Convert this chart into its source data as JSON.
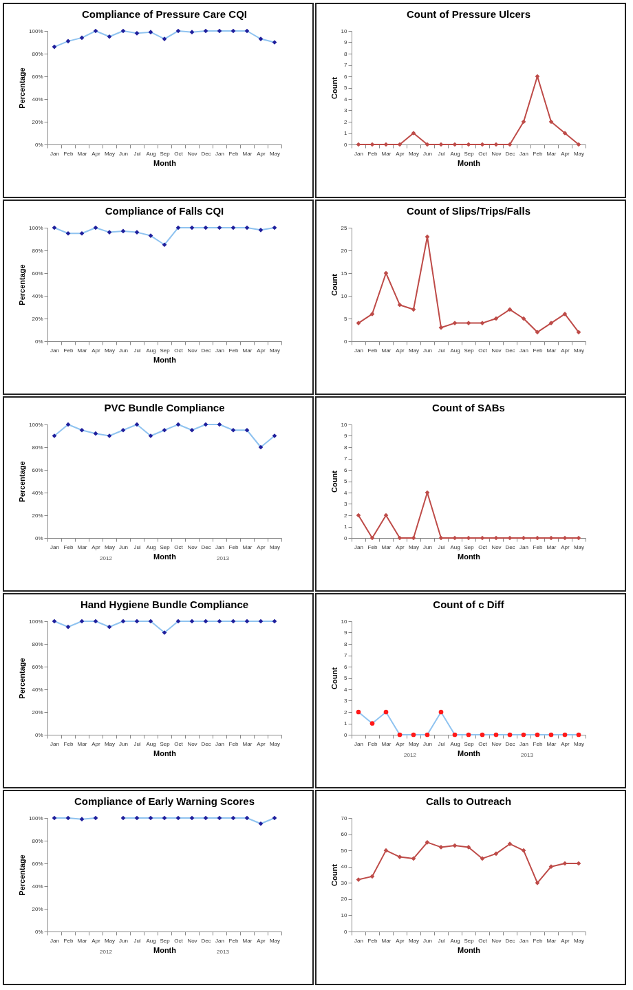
{
  "chart_data": [
    {
      "type": "line",
      "title": "Compliance of Pressure Care CQI",
      "xlabel": "Month",
      "ylabel": "Percentage",
      "marker": "diamond",
      "categories": [
        "Jan",
        "Feb",
        "Mar",
        "Apr",
        "May",
        "Jun",
        "Jul",
        "Aug",
        "Sep",
        "Oct",
        "Nov",
        "Dec",
        "Jan",
        "Feb",
        "Mar",
        "Apr",
        "May"
      ],
      "ylim": [
        0,
        100
      ],
      "yticks": [
        {
          "value": 0,
          "label": "0%"
        },
        {
          "value": 20,
          "label": "20%"
        },
        {
          "value": 40,
          "label": "40%"
        },
        {
          "value": 60,
          "label": "60%"
        },
        {
          "value": 80,
          "label": "80%"
        },
        {
          "value": 100,
          "label": "100%"
        }
      ],
      "series": [
        {
          "color": "#8fc3f0",
          "colors": [
            "#1f1f9c",
            "#1f1f9c",
            "#1f1f9c",
            "#1f1f9c",
            "#1f1f9c",
            "#1f1f9c",
            "#1f1f9c",
            "#1f1f9c",
            "#1f1f9c",
            "#1f1f9c",
            "#1f1f9c",
            "#1f1f9c",
            "#1f1f9c",
            "#1f1f9c",
            "#1f1f9c",
            "#1f1f9c",
            "#1f1f9c"
          ],
          "values": [
            86,
            91,
            94,
            100,
            95,
            100,
            98,
            99,
            93,
            100,
            99,
            100,
            100,
            100,
            100,
            93,
            90
          ]
        }
      ]
    },
    {
      "type": "line",
      "title": "Count  of Pressure Ulcers",
      "xlabel": "Month",
      "ylabel": "Count",
      "marker": "diamond",
      "categories": [
        "Jan",
        "Feb",
        "Mar",
        "Apr",
        "May",
        "Jun",
        "Jul",
        "Aug",
        "Sep",
        "Oct",
        "Nov",
        "Dec",
        "Jan",
        "Feb",
        "Mar",
        "Apr",
        "May"
      ],
      "ylim": [
        0,
        10
      ],
      "yticks": [
        0,
        1,
        2,
        3,
        4,
        5,
        6,
        7,
        8,
        9,
        10
      ],
      "series": [
        {
          "color": "#be4b48",
          "values": [
            0,
            0,
            0,
            0,
            1,
            0,
            0,
            0,
            0,
            0,
            0,
            0,
            2,
            6,
            2,
            1,
            0
          ]
        }
      ]
    },
    {
      "type": "line",
      "title": "Compliance of Falls CQI",
      "xlabel": "Month",
      "ylabel": "Percentage",
      "marker": "diamond",
      "categories": [
        "Jan",
        "Feb",
        "Mar",
        "Apr",
        "May",
        "Jun",
        "Jul",
        "Aug",
        "Sep",
        "Oct",
        "Nov",
        "Dec",
        "Jan",
        "Feb",
        "Mar",
        "Apr",
        "May"
      ],
      "ylim": [
        0,
        100
      ],
      "yticks": [
        {
          "value": 0,
          "label": "0%"
        },
        {
          "value": 20,
          "label": "20%"
        },
        {
          "value": 40,
          "label": "40%"
        },
        {
          "value": 60,
          "label": "60%"
        },
        {
          "value": 80,
          "label": "80%"
        },
        {
          "value": 100,
          "label": "100%"
        }
      ],
      "series": [
        {
          "color": "#8fc3f0",
          "colors": [
            "#1f1f9c",
            "#1f1f9c",
            "#1f1f9c",
            "#1f1f9c",
            "#1f1f9c",
            "#1f1f9c",
            "#1f1f9c",
            "#1f1f9c",
            "#1f1f9c",
            "#1f1f9c",
            "#1f1f9c",
            "#1f1f9c",
            "#1f1f9c",
            "#1f1f9c",
            "#1f1f9c",
            "#1f1f9c",
            "#1f1f9c"
          ],
          "values": [
            100,
            95,
            95,
            100,
            96,
            97,
            96,
            93,
            85,
            100,
            100,
            100,
            100,
            100,
            100,
            98,
            100
          ]
        }
      ]
    },
    {
      "type": "line",
      "title": "Count of Slips/Trips/Falls",
      "ylabel": "Count",
      "marker": "diamond",
      "categories": [
        "Jan",
        "Feb",
        "Mar",
        "Apr",
        "May",
        "Jun",
        "Jul",
        "Aug",
        "Sep",
        "Oct",
        "Nov",
        "Dec",
        "Jan",
        "Feb",
        "Mar",
        "Apr",
        "May"
      ],
      "ylim": [
        0,
        25
      ],
      "yticks": [
        0,
        5,
        10,
        15,
        20,
        25
      ],
      "series": [
        {
          "color": "#be4b48",
          "values": [
            4,
            6,
            15,
            8,
            7,
            23,
            3,
            4,
            4,
            4,
            5,
            7,
            5,
            2,
            4,
            6,
            2
          ]
        }
      ]
    },
    {
      "type": "line",
      "title": "PVC Bundle Compliance",
      "xlabel": "Month",
      "ylabel": "Percentage",
      "marker": "diamond",
      "annotations": [
        "2012",
        "2013"
      ],
      "categories": [
        "Jan",
        "Feb",
        "Mar",
        "Apr",
        "May",
        "Jun",
        "Jul",
        "Aug",
        "Sep",
        "Oct",
        "Nov",
        "Dec",
        "Jan",
        "Feb",
        "Mar",
        "Apr",
        "May"
      ],
      "ylim": [
        0,
        100
      ],
      "yticks": [
        {
          "value": 0,
          "label": "0%"
        },
        {
          "value": 20,
          "label": "20%"
        },
        {
          "value": 40,
          "label": "40%"
        },
        {
          "value": 60,
          "label": "60%"
        },
        {
          "value": 80,
          "label": "80%"
        },
        {
          "value": 100,
          "label": "100%"
        }
      ],
      "series": [
        {
          "color": "#8fc3f0",
          "colors": [
            "#1f1f9c",
            "#1f1f9c",
            "#1f1f9c",
            "#1f1f9c",
            "#1f1f9c",
            "#1f1f9c",
            "#1f1f9c",
            "#1f1f9c",
            "#1f1f9c",
            "#1f1f9c",
            "#1f1f9c",
            "#1f1f9c",
            "#1f1f9c",
            "#1f1f9c",
            "#1f1f9c",
            "#1f1f9c",
            "#1f1f9c"
          ],
          "values": [
            90,
            100,
            95,
            92,
            90,
            95,
            100,
            90,
            95,
            100,
            95,
            100,
            100,
            95,
            95,
            80,
            90
          ]
        }
      ]
    },
    {
      "type": "line",
      "title": "Count of SABs",
      "xlabel": "Month",
      "ylabel": "Count",
      "marker": "diamond",
      "categories": [
        "Jan",
        "Feb",
        "Mar",
        "Apr",
        "May",
        "Jun",
        "Jul",
        "Aug",
        "Sep",
        "Oct",
        "Nov",
        "Dec",
        "Jan",
        "Feb",
        "Mar",
        "Apr",
        "May"
      ],
      "ylim": [
        0,
        10
      ],
      "yticks": [
        0,
        1,
        2,
        3,
        4,
        5,
        6,
        7,
        8,
        9,
        10
      ],
      "series": [
        {
          "color": "#be4b48",
          "values": [
            2,
            0,
            2,
            0,
            0,
            4,
            0,
            0,
            0,
            0,
            0,
            0,
            0,
            0,
            0,
            0,
            0
          ]
        }
      ]
    },
    {
      "type": "line",
      "title": "Hand Hygiene Bundle Compliance",
      "xlabel": "Month",
      "ylabel": "Percentage",
      "marker": "diamond",
      "categories": [
        "Jan",
        "Feb",
        "Mar",
        "Apr",
        "May",
        "Jun",
        "Jul",
        "Aug",
        "Sep",
        "Oct",
        "Nov",
        "Dec",
        "Jan",
        "Feb",
        "Mar",
        "Apr",
        "May"
      ],
      "ylim": [
        0,
        100
      ],
      "yticks": [
        {
          "value": 0,
          "label": "0%"
        },
        {
          "value": 20,
          "label": "20%"
        },
        {
          "value": 40,
          "label": "40%"
        },
        {
          "value": 60,
          "label": "60%"
        },
        {
          "value": 80,
          "label": "80%"
        },
        {
          "value": 100,
          "label": "100%"
        }
      ],
      "series": [
        {
          "color": "#8fc3f0",
          "colors": [
            "#1f1f9c",
            "#1f1f9c",
            "#1f1f9c",
            "#1f1f9c",
            "#1f1f9c",
            "#1f1f9c",
            "#1f1f9c",
            "#1f1f9c",
            "#1f1f9c",
            "#1f1f9c",
            "#1f1f9c",
            "#1f1f9c",
            "#1f1f9c",
            "#1f1f9c",
            "#1f1f9c",
            "#1f1f9c",
            "#1f1f9c"
          ],
          "values": [
            100,
            95,
            100,
            100,
            95,
            100,
            100,
            100,
            90,
            100,
            100,
            100,
            100,
            100,
            100,
            100,
            100
          ]
        }
      ]
    },
    {
      "type": "line",
      "title": "Count of c Diff",
      "xlabel": "Month",
      "ylabel": "Count",
      "marker": "circle",
      "annotations": [
        "2012",
        "2013"
      ],
      "categories": [
        "Jan",
        "Feb",
        "Mar",
        "Apr",
        "May",
        "Jun",
        "Jul",
        "Aug",
        "Sep",
        "Oct",
        "Nov",
        "Dec",
        "Jan",
        "Feb",
        "Mar",
        "Apr",
        "May"
      ],
      "ylim": [
        0,
        10
      ],
      "yticks": [
        0,
        1,
        2,
        3,
        4,
        5,
        6,
        7,
        8,
        9,
        10
      ],
      "series": [
        {
          "color": "#8fc3f0",
          "colors": [
            "#ff1a1a",
            "#ff1a1a",
            "#ff1a1a",
            "#ff1a1a",
            "#ff1a1a",
            "#ff1a1a",
            "#ff1a1a",
            "#ff1a1a",
            "#ff1a1a",
            "#ff1a1a",
            "#ff1a1a",
            "#ff1a1a",
            "#ff1a1a",
            "#ff1a1a",
            "#ff1a1a",
            "#ff1a1a",
            "#ff1a1a"
          ],
          "values": [
            2,
            1,
            2,
            0,
            0,
            0,
            2,
            0,
            0,
            0,
            0,
            0,
            0,
            0,
            0,
            0,
            0
          ]
        }
      ]
    },
    {
      "type": "line",
      "title": "Compliance of Early Warning Scores",
      "xlabel": "Month",
      "ylabel": "Percentage",
      "marker": "diamond",
      "annotations": [
        "2012",
        "2013"
      ],
      "categories": [
        "Jan",
        "Feb",
        "Mar",
        "Apr",
        "May",
        "Jun",
        "Jul",
        "Aug",
        "Sep",
        "Oct",
        "Nov",
        "Dec",
        "Jan",
        "Feb",
        "Mar",
        "Apr",
        "May"
      ],
      "ylim": [
        0,
        100
      ],
      "yticks": [
        {
          "value": 0,
          "label": "0%"
        },
        {
          "value": 20,
          "label": "20%"
        },
        {
          "value": 40,
          "label": "40%"
        },
        {
          "value": 60,
          "label": "60%"
        },
        {
          "value": 80,
          "label": "80%"
        },
        {
          "value": 100,
          "label": "100%"
        }
      ],
      "series": [
        {
          "color": "#8fc3f0",
          "colors": [
            "#1f1f9c",
            "#1f1f9c",
            "#1f1f9c",
            "#1f1f9c",
            "#1f1f9c",
            "#1f1f9c",
            "#1f1f9c",
            "#1f1f9c",
            "#1f1f9c",
            "#1f1f9c",
            "#1f1f9c",
            "#1f1f9c",
            "#1f1f9c",
            "#1f1f9c",
            "#1f1f9c",
            "#1f1f9c",
            "#1f1f9c"
          ],
          "values": [
            100,
            100,
            99,
            100,
            null,
            100,
            100,
            100,
            100,
            100,
            100,
            100,
            100,
            100,
            100,
            95,
            100
          ]
        }
      ]
    },
    {
      "type": "line",
      "title": "Calls to Outreach",
      "xlabel": "Month",
      "ylabel": "Count",
      "marker": "diamond",
      "categories": [
        "Jan",
        "Feb",
        "Mar",
        "Apr",
        "May",
        "Jun",
        "Jul",
        "Aug",
        "Sep",
        "Oct",
        "Nov",
        "Dec",
        "Jan",
        "Feb",
        "Mar",
        "Apr",
        "May"
      ],
      "ylim": [
        0,
        70
      ],
      "yticks": [
        0,
        10,
        20,
        30,
        40,
        50,
        60,
        70
      ],
      "series": [
        {
          "color": "#be4b48",
          "values": [
            32,
            34,
            50,
            46,
            45,
            55,
            52,
            53,
            52,
            45,
            48,
            54,
            50,
            30,
            40,
            42,
            42
          ]
        }
      ]
    }
  ]
}
